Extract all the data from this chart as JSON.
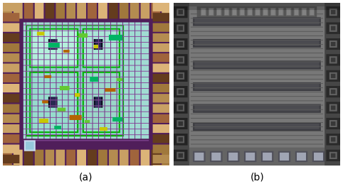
{
  "figure_width": 4.82,
  "figure_height": 2.59,
  "dpi": 100,
  "background_color": "#ffffff",
  "label_a": "(a)",
  "label_b": "(b)",
  "label_fontsize": 10,
  "label_color": "#000000"
}
